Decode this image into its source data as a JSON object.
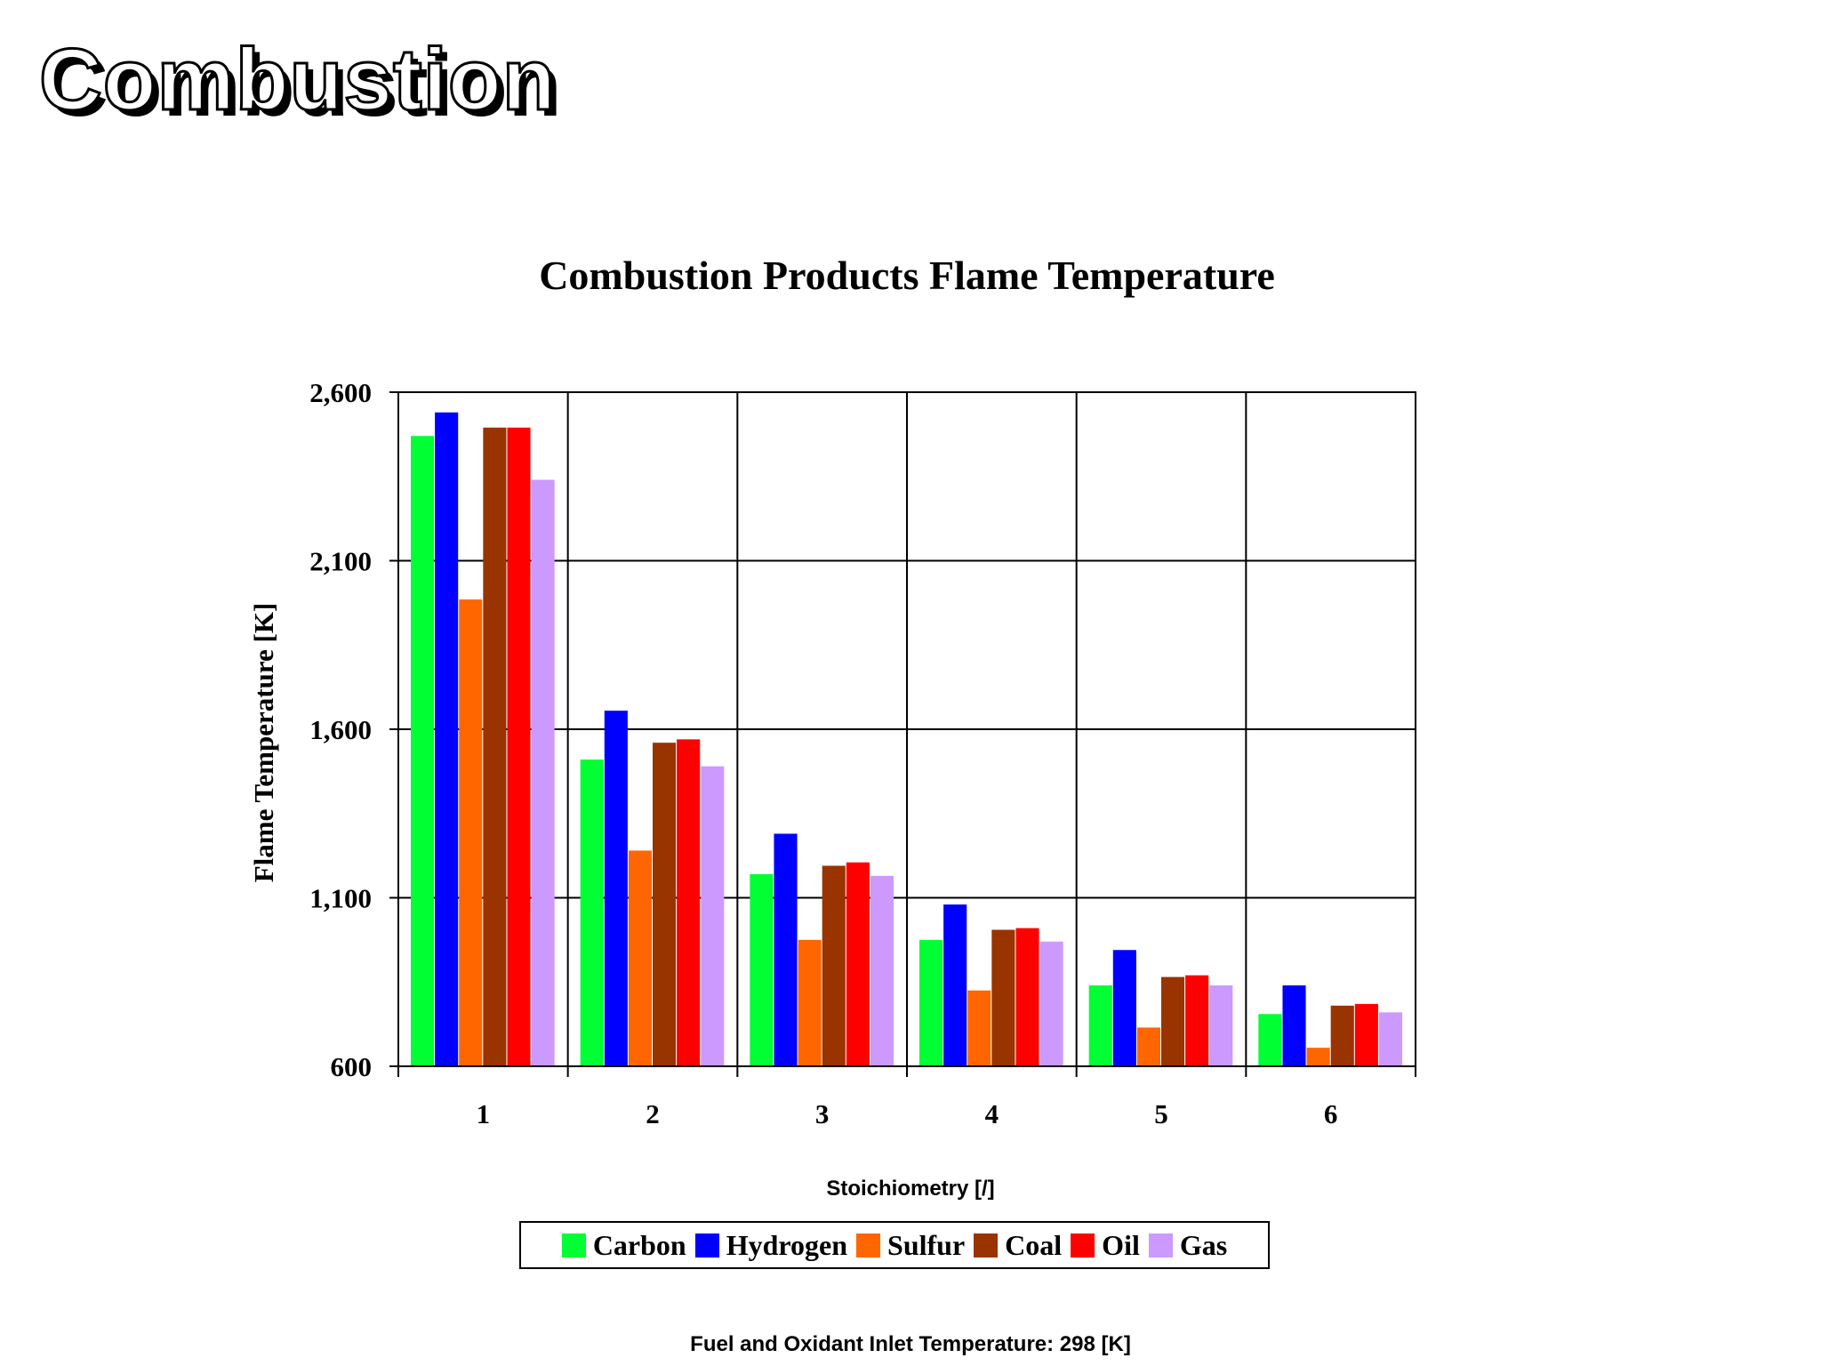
{
  "slide": {
    "title": "Combustion",
    "footnote": "Fuel and Oxidant Inlet Temperature:  298 [K]"
  },
  "chart_data": {
    "type": "bar",
    "title": "Combustion Products Flame Temperature",
    "xlabel": "Stoichiometry [/]",
    "ylabel": "Flame Temperature [K]",
    "categories": [
      "1",
      "2",
      "3",
      "4",
      "5",
      "6"
    ],
    "ylim": [
      600,
      2600
    ],
    "yticks": [
      600,
      1100,
      1600,
      2100,
      2600
    ],
    "ytick_labels": [
      "600",
      "1,100",
      "1,600",
      "2,100",
      "2,600"
    ],
    "grid": true,
    "legend_position": "bottom",
    "series": [
      {
        "name": "Carbon",
        "color": "#00ff33",
        "values": [
          2470,
          1510,
          1170,
          975,
          840,
          755
        ]
      },
      {
        "name": "Hydrogen",
        "color": "#0000ff",
        "values": [
          2540,
          1655,
          1290,
          1080,
          945,
          840
        ]
      },
      {
        "name": "Sulfur",
        "color": "#ff6600",
        "values": [
          1985,
          1240,
          975,
          825,
          715,
          655
        ]
      },
      {
        "name": "Coal",
        "color": "#993300",
        "values": [
          2495,
          1560,
          1195,
          1005,
          865,
          780
        ]
      },
      {
        "name": "Oil",
        "color": "#ff0000",
        "values": [
          2495,
          1570,
          1205,
          1010,
          870,
          785
        ]
      },
      {
        "name": "Gas",
        "color": "#cc99ff",
        "values": [
          2340,
          1490,
          1165,
          970,
          840,
          760
        ]
      }
    ]
  }
}
